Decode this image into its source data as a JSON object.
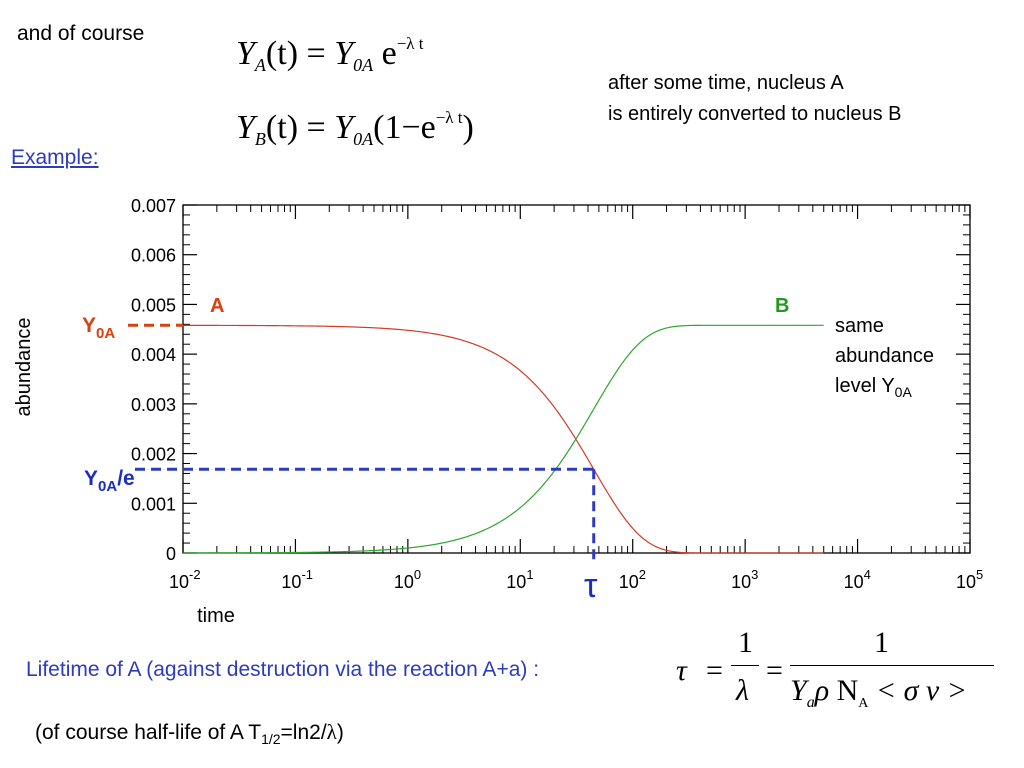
{
  "intro": "and of course",
  "equations": {
    "ya_lhs": "Y",
    "ya_sub": "A",
    "ya_t": "(t)",
    "ya_eq": "=",
    "ya_y0": "Y",
    "ya_y0sub": "0A",
    "ya_exp": "e",
    "ya_expsup": "−λ t",
    "yb_lhs": "Y",
    "yb_sub": "B",
    "yb_t": "(t)",
    "yb_eq": "=",
    "yb_y0": "Y",
    "yb_y0sub": "0A",
    "yb_paren": "(1−e",
    "yb_expsup": "−λ t",
    "yb_close": ")"
  },
  "note": {
    "line1": "after some time, nucleus A",
    "line2": "is entirely converted to nucleus B"
  },
  "example_label": "Example:",
  "chart_data": {
    "type": "line",
    "x_scale": "log",
    "xlim": [
      0.01,
      100000
    ],
    "ylim": [
      0,
      0.007
    ],
    "xlabel": "time",
    "ylabel": "abundance",
    "x_tick_exponents": [
      "-2",
      "-1",
      "0",
      "1",
      "2",
      "3",
      "4",
      "5"
    ],
    "x_tick_base": "10",
    "y_ticks": [
      "0",
      "0.001",
      "0.002",
      "0.003",
      "0.004",
      "0.005",
      "0.006",
      "0.007"
    ],
    "y0A": 0.00458,
    "tau": 45,
    "x_end": 5000,
    "series": [
      {
        "name": "A",
        "color": "#d63a2a",
        "formula": "Y0A*exp(-t/tau)"
      },
      {
        "name": "B",
        "color": "#2ea62e",
        "formula": "Y0A*(1-exp(-t/tau))"
      }
    ],
    "annotations": {
      "y0a_main": "Y",
      "y0a_sub": "0A",
      "y0ae_main": "Y",
      "y0ae_sub": "0A",
      "y0ae_tail": "/e",
      "tau": "τ",
      "same_line1": "same",
      "same_line2": "abundance",
      "same_line3_main": "level Y",
      "same_line3_sub": "0A"
    },
    "colors": {
      "dashed": "#2d3bbf",
      "y0a_label": "#d94010",
      "y0ae_label": "#1a2fbf"
    }
  },
  "lifetime_text": "Lifetime of A (against destruction via the reaction A+a) :",
  "halflife": {
    "pre": "(of course half-life of A T",
    "sub": "1/2",
    "mid": "=ln2/",
    "lambda": "λ",
    "post": ")"
  },
  "tau_formula": {
    "tau": "τ",
    "eq1": "=",
    "num1": "1",
    "den1": "λ",
    "eq2": "=",
    "num2": "1",
    "den_Y": "Y",
    "den_sub": "a",
    "den_rho": "ρ",
    "den_N": "N",
    "den_Nsub": "A",
    "den_sv": "< σ v >"
  }
}
